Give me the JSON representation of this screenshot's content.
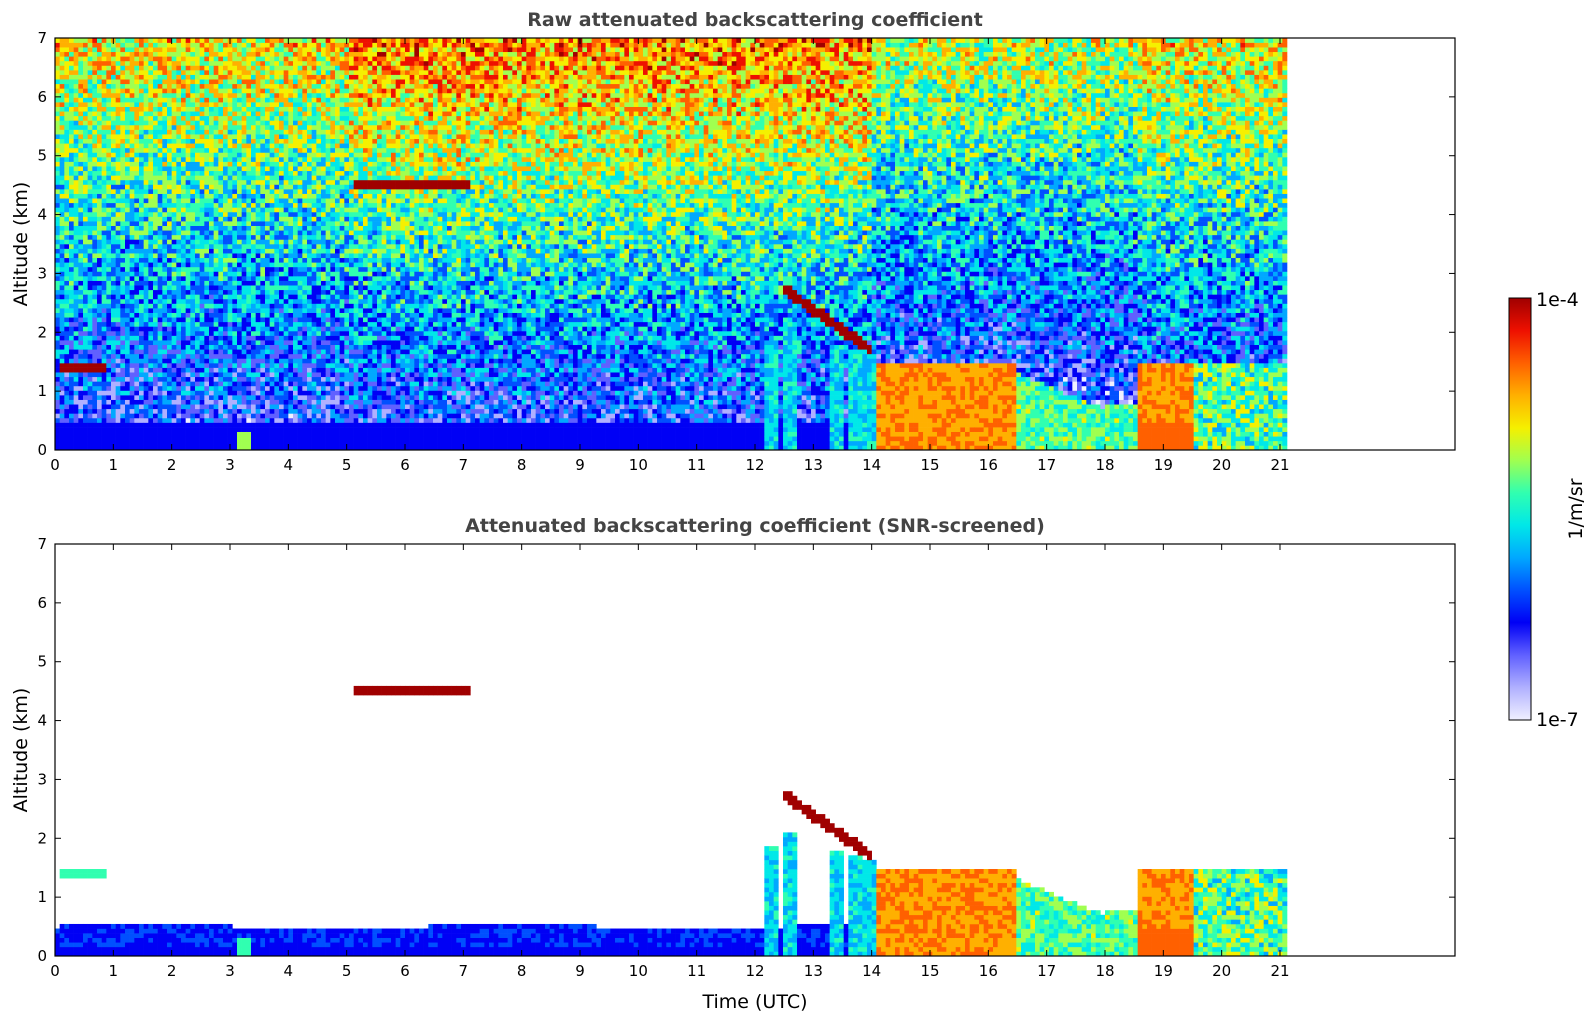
{
  "colors": {
    "colormap": [
      "#f0f0ff",
      "#b0b0ff",
      "#6060ff",
      "#0000f5",
      "#0050ff",
      "#00a8ff",
      "#00e8e8",
      "#30ffb0",
      "#a0ff50",
      "#f5f000",
      "#ffb000",
      "#ff6000",
      "#ee1000",
      "#a00000"
    ],
    "cloud_edge": "#000000"
  },
  "chart_data": [
    {
      "type": "heatmap",
      "title": "Raw attenuated backscattering coefficient",
      "xlabel": "",
      "ylabel": "Altitude (km)",
      "xlim": [
        0,
        24
      ],
      "ylim": [
        0,
        7
      ],
      "x_ticks": [
        "0",
        "1",
        "2",
        "3",
        "4",
        "5",
        "6",
        "7",
        "8",
        "9",
        "10",
        "11",
        "12",
        "13",
        "14",
        "15",
        "16",
        "17",
        "18",
        "19",
        "20",
        "21"
      ],
      "y_ticks": [
        "0",
        "1",
        "2",
        "3",
        "4",
        "5",
        "6",
        "7"
      ],
      "data_end_time": 21.1,
      "features": [
        {
          "name": "surface layer",
          "t0": 0,
          "t1": 14.0,
          "z0": 0,
          "z1": 0.45,
          "level": 0.3
        },
        {
          "name": "low cloud",
          "t0": 0.1,
          "t1": 0.85,
          "z0": 1.35,
          "z1": 1.5,
          "level": 0.97
        },
        {
          "name": "mid-level cloud",
          "t0": 5.1,
          "t1": 7.1,
          "z0": 4.45,
          "z1": 4.6,
          "level": 1.0
        },
        {
          "name": "boundary layer clouds",
          "t0": 14.1,
          "t1": 21.1,
          "z0": 0,
          "z1": 1.6,
          "level": 0.8
        }
      ]
    },
    {
      "type": "heatmap",
      "title": "Attenuated backscattering coefficient (SNR-screened)",
      "xlabel": "Time (UTC)",
      "ylabel": "Altitude (km)",
      "xlim": [
        0,
        24
      ],
      "ylim": [
        0,
        7
      ],
      "x_ticks": [
        "0",
        "1",
        "2",
        "3",
        "4",
        "5",
        "6",
        "7",
        "8",
        "9",
        "10",
        "11",
        "12",
        "13",
        "14",
        "15",
        "16",
        "17",
        "18",
        "19",
        "20",
        "21"
      ],
      "y_ticks": [
        "0",
        "1",
        "2",
        "3",
        "4",
        "5",
        "6",
        "7"
      ],
      "data_end_time": 21.1,
      "features": [
        {
          "name": "surface layer",
          "t0": 0,
          "t1": 14.0,
          "z0": 0,
          "z1": 0.55,
          "level": 0.3
        },
        {
          "name": "low cloud",
          "t0": 0.1,
          "t1": 0.85,
          "z0": 1.35,
          "z1": 1.5,
          "level": 0.6
        },
        {
          "name": "mid-level cloud",
          "t0": 5.1,
          "t1": 7.1,
          "z0": 4.45,
          "z1": 4.6,
          "level": 1.0
        },
        {
          "name": "boundary layer clouds",
          "t0": 14.1,
          "t1": 21.1,
          "z0": 0,
          "z1": 1.6,
          "level": 0.8
        }
      ]
    }
  ],
  "colorbar": {
    "label": "1/m/sr",
    "max_label": "1e-4",
    "min_label": "1e-7"
  }
}
